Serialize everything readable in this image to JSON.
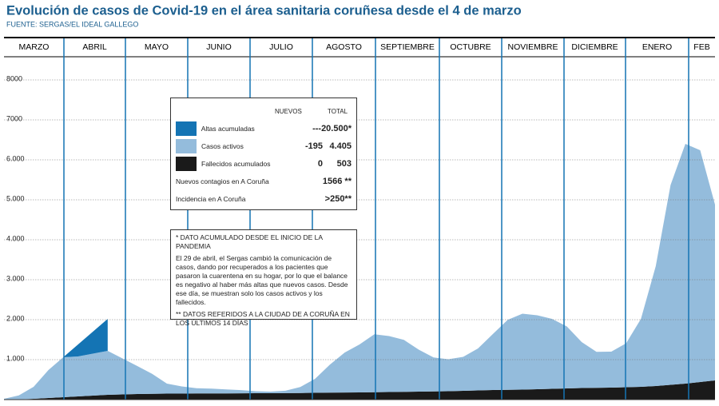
{
  "chart_data": {
    "type": "stacked-area",
    "title": "Evolución de casos de Covid-19 en el área sanitaria coruñesa desde el 4 de marzo",
    "source": "FUENTE: SERGAS/EL IDEAL GALLEGO",
    "months": [
      "MARZO",
      "ABRIL",
      "MAYO",
      "JUNIO",
      "JULIO",
      "AGOSTO",
      "SEPTIEMBRE",
      "OCTUBRE",
      "NOVIEMBRE",
      "DICIEMBRE",
      "ENERO",
      "FEB"
    ],
    "categories": [
      null,
      null,
      null,
      null,
      null,
      null,
      null,
      null,
      null,
      null,
      null,
      null,
      null,
      null,
      null,
      null,
      null,
      null,
      null,
      null,
      null,
      null,
      null,
      null,
      null,
      null,
      null,
      null,
      null,
      null,
      null,
      null,
      null,
      null,
      null,
      null,
      null,
      null,
      null,
      null,
      null,
      null,
      null,
      null,
      null,
      null,
      null,
      null,
      null
    ],
    "series": [
      {
        "name": "Altas acumuladas",
        "color": "#1474b4",
        "values": [
          null,
          null,
          null,
          null,
          0,
          300,
          550,
          800,
          null,
          null,
          null,
          null,
          null,
          null,
          null,
          null,
          null,
          null,
          null,
          null,
          null,
          null,
          null,
          null,
          null,
          null,
          null,
          null,
          null,
          null,
          null,
          null,
          null,
          null,
          null,
          null,
          null,
          null,
          null,
          null,
          null,
          null,
          null,
          null,
          null,
          null,
          null,
          null,
          null
        ]
      },
      {
        "name": "Casos activos",
        "color": "#94bcdc",
        "values": [
          20,
          100,
          300,
          700,
          1000,
          1000,
          1050,
          1100,
          900,
          700,
          500,
          250,
          180,
          130,
          120,
          100,
          80,
          50,
          40,
          60,
          150,
          350,
          700,
          1000,
          1200,
          1450,
          1400,
          1300,
          1050,
          850,
          800,
          850,
          1050,
          1400,
          1750,
          1900,
          1850,
          1750,
          1550,
          1150,
          900,
          900,
          1100,
          1700,
          3000,
          5000,
          6000,
          5800,
          4400
        ]
      },
      {
        "name": "Fallecidos acumulados",
        "color": "#1a1a1a",
        "values": [
          0,
          5,
          20,
          40,
          60,
          80,
          100,
          120,
          130,
          140,
          145,
          150,
          150,
          155,
          155,
          155,
          158,
          160,
          160,
          162,
          165,
          170,
          175,
          178,
          180,
          185,
          190,
          195,
          200,
          205,
          210,
          220,
          230,
          240,
          245,
          250,
          260,
          270,
          280,
          290,
          295,
          300,
          310,
          320,
          340,
          370,
          400,
          440,
          480
        ]
      }
    ],
    "ylim": [
      0,
      8500
    ],
    "yticks": [
      1000,
      2000,
      3000,
      4000,
      5000,
      6000,
      7000,
      8000
    ],
    "ytick_labels": [
      "1.000",
      "2.000",
      "3.000",
      "4.000",
      "5.000",
      "6.000",
      "7000",
      "8000"
    ],
    "grid": true,
    "legend_table": {
      "headers": [
        "NUEVOS",
        "TOTAL"
      ],
      "rows": [
        {
          "nuevos": "---",
          "total": "20.500*"
        },
        {
          "nuevos": "-195",
          "total": "4.405"
        },
        {
          "nuevos": "0",
          "total": "503"
        },
        {
          "label": "Nuevos contagios en A Coruña",
          "total": "1566 **"
        },
        {
          "label": "Incidencia en A Coruña",
          "total": ">250**"
        }
      ]
    },
    "notes": [
      "* DATO ACUMULADO DESDE EL INICIO DE LA PANDEMIA",
      "El 29 de abril, el Sergas cambió la comunicación de casos, dando por recuperados a los pacientes que pasaron la cuarentena en su hogar, por lo que el balance es negativo al haber más altas que nuevos casos. Desde ese día, se muestran solo los casos activos y los fallecidos.",
      "** DATOS REFERIDOS A LA CIUDAD DE A CORUÑA EN LOS ÚLTIMOS 14 DÍAS"
    ]
  }
}
